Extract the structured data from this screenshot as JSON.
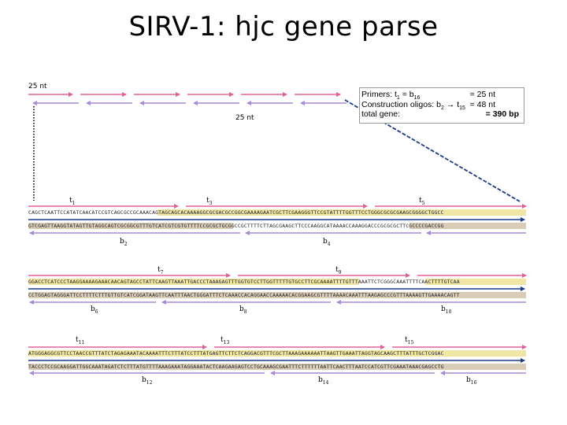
{
  "title": "SIRV-1: hjc gene parse",
  "scale_labels": {
    "top": "25 nt",
    "mid": "25 nt"
  },
  "info_box": {
    "line1": {
      "label": "Primers:  t",
      "sub1": "1",
      "mid": " = b",
      "sub2": "16",
      "value": "= 25 nt"
    },
    "line2": {
      "label": "Construction oligos: b",
      "sub1": "2",
      "mid": " → t",
      "sub2": "15",
      "value": "=  48 nt"
    },
    "line3": {
      "label": "total gene:",
      "value": "= 390 bp"
    }
  },
  "oligo_labels": {
    "t1": {
      "base": "t",
      "sub": "1"
    },
    "t3": {
      "base": "t",
      "sub": "3"
    },
    "t5": {
      "base": "t",
      "sub": "5"
    },
    "b2": {
      "base": "b",
      "sub": "2"
    },
    "b4": {
      "base": "b",
      "sub": "4"
    },
    "t7": {
      "base": "t",
      "sub": "7"
    },
    "t9": {
      "base": "t",
      "sub": "9"
    },
    "b6": {
      "base": "b",
      "sub": "6"
    },
    "b8": {
      "base": "b",
      "sub": "8"
    },
    "b10": {
      "base": "b",
      "sub": "10"
    },
    "t11": {
      "base": "t",
      "sub": "11"
    },
    "t13": {
      "base": "t",
      "sub": "13"
    },
    "t15": {
      "base": "t",
      "sub": "15"
    },
    "b12": {
      "base": "b",
      "sub": "12"
    },
    "b14": {
      "base": "b",
      "sub": "14"
    },
    "b16": {
      "base": "b",
      "sub": "16"
    }
  },
  "sequences": {
    "row1_top": "CAGCTCAATTCCATATCAACATCCGTCAGCGCCGCAAACAGTAGCAGCACAAAAGGCGCGACGCCGGCGAAAAGAATCGCTTCGAAGGGTTCCGTATTTTGGTTTCCTGGGCGCGCGAAGCGGGGCTGGCC",
    "row1_bottom": "GTCGAGTTAAGGTATAGTTGTAGGCAGTCGCGGCGTTTGTCATCGTCGTGTTTTCCGCGCTGCGGCCGCTTTTCTTAGCGAAGCTTCCCAAGGCATAAAACCAAAGGACCCGCGCGCTTCGCCCCGACCGG",
    "row2_top": "GGACCTCATCCCTAAGGAAAAGAAACAACAGTAGCCTATTCAAGTTAAATTGACCCTAAAGAGTTTGGTGTCCTTGGTTTTTGTGCCTTCGCAAAATTTTGTTTAAATTCTCGGGCAAATTTTCAACTTTTGTCAA",
    "row2_bottom": "CCTGGAGTAGGGATTCCTTTTCTTTGTTGTCATCGGATAAGTTCAATTTAACTGGGATTTCTCAAACCACAGGAACCAAAAACACGGAAGCGTTTTAAAACAAATTTAAGAGCCCGTTTAAAAGTTGAAAACAGTT",
    "row3_top": "ATGGGAGGCGTTCCTAACCGTTTATCTAGAGAAATACAAAATTTCTTTATCCTTTATGAGTTCTTCTCAGGACGTTTCGCTTAAAGAAAAAATTAAGTTGAAATTAGGTAGCAAGCTTTATTTGCTCGGAC",
    "row3_bottom": "TACCCTCCGCAAGGATTGGCAAATAGATCTCTTTATGTTTTAAAGAAATAGGAAATACTCAAGAAGAGTCCTGCAAAGCGAATTTCTTTTTTAATTCAACTTTAATCCATCGTTCGAAATAAACGAGCCTG"
  },
  "colors": {
    "top_arrow": "#e0609a",
    "bottom_arrow": "#a58bd3",
    "top_seq_bg": "#efe6a3",
    "bottom_seq_bg": "#d9cdb8",
    "divider": "#1a3a8a",
    "dotted": "#333333"
  }
}
